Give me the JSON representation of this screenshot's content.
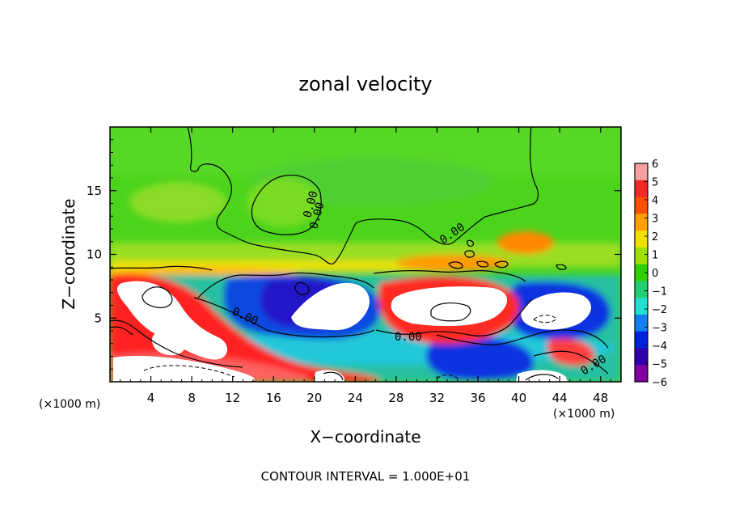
{
  "chart_data": {
    "type": "heatmap",
    "title": "zonal velocity",
    "xlabel": "X−coordinate",
    "ylabel": "Z−coordinate",
    "x_unit_left": "(×1000 m)",
    "x_unit_right": "(×1000 m)",
    "footer": "CONTOUR INTERVAL = 1.000E+01",
    "xlim": [
      0,
      50
    ],
    "ylim": [
      0,
      20
    ],
    "x_ticks": [
      4,
      8,
      12,
      16,
      20,
      24,
      28,
      32,
      36,
      40,
      44,
      48
    ],
    "y_ticks": [
      5,
      10,
      15
    ],
    "contour_labels": [
      "0.00",
      "0.00",
      "0.00",
      "0.00",
      "0.00",
      "0.00"
    ],
    "colorbar": {
      "min": -6,
      "max": 6,
      "ticks": [
        6,
        5,
        4,
        3,
        2,
        1,
        0,
        -1,
        -2,
        -3,
        -4,
        -5,
        -6
      ],
      "colors": [
        "#f4a0a0",
        "#f02828",
        "#ff5000",
        "#ffa000",
        "#f0e000",
        "#a0e000",
        "#30d000",
        "#20d070",
        "#20e0d0",
        "#1080f0",
        "#0020e0",
        "#3000b0",
        "#8000a0"
      ]
    }
  }
}
